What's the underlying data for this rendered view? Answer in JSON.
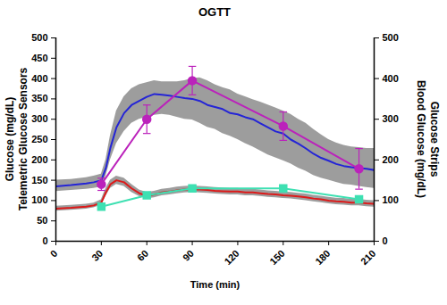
{
  "chart_data": {
    "type": "line",
    "title": "OGTT",
    "xlabel": "Time (min)",
    "ylabel": [
      "Glucose (mg/dL)",
      "Telemetric Glucose Sensors"
    ],
    "y2label": [
      "Blood Glucose (mg/dL)",
      "Glucose Strips"
    ],
    "xlim": [
      0,
      210
    ],
    "xticks": [
      0,
      30,
      60,
      90,
      120,
      150,
      180,
      210
    ],
    "ylim": [
      0,
      500
    ],
    "yticks": [
      0,
      50,
      100,
      150,
      200,
      250,
      300,
      350,
      400,
      450,
      500
    ],
    "y2lim": [
      0,
      500
    ],
    "y2ticks": [
      0,
      100,
      200,
      300,
      400,
      500
    ],
    "grid": false,
    "series": [
      {
        "color": "#2424d6",
        "type": "line",
        "x": [
          0,
          10,
          20,
          25,
          30,
          33,
          36,
          40,
          45,
          50,
          55,
          60,
          65,
          70,
          75,
          80,
          85,
          90,
          95,
          100,
          105,
          110,
          115,
          120,
          125,
          130,
          135,
          140,
          145,
          150,
          155,
          160,
          165,
          170,
          175,
          180,
          185,
          190,
          195,
          200,
          205,
          210
        ],
        "values": [
          135,
          138,
          142,
          145,
          150,
          180,
          230,
          280,
          315,
          335,
          345,
          355,
          362,
          360,
          358,
          355,
          352,
          350,
          345,
          335,
          330,
          325,
          315,
          312,
          305,
          300,
          290,
          280,
          270,
          265,
          250,
          240,
          228,
          215,
          205,
          198,
          190,
          185,
          182,
          180,
          178,
          175
        ],
        "lower": [
          122,
          125,
          128,
          130,
          133,
          160,
          200,
          240,
          270,
          290,
          300,
          305,
          310,
          312,
          310,
          305,
          300,
          298,
          290,
          280,
          275,
          265,
          258,
          250,
          240,
          232,
          222,
          212,
          205,
          198,
          190,
          180,
          172,
          162,
          155,
          150,
          145,
          140,
          138,
          135,
          132,
          130
        ],
        "upper": [
          150,
          152,
          156,
          160,
          165,
          200,
          260,
          320,
          355,
          375,
          385,
          390,
          395,
          392,
          392,
          392,
          395,
          400,
          402,
          395,
          385,
          378,
          372,
          362,
          355,
          348,
          342,
          335,
          328,
          320,
          312,
          300,
          290,
          275,
          262,
          250,
          242,
          236,
          232,
          230,
          228,
          228
        ]
      },
      {
        "color": "#dd1a1a",
        "type": "line",
        "x": [
          0,
          10,
          20,
          25,
          30,
          33,
          36,
          40,
          45,
          50,
          55,
          60,
          65,
          70,
          75,
          80,
          85,
          90,
          95,
          100,
          105,
          110,
          115,
          120,
          125,
          130,
          135,
          140,
          145,
          150,
          155,
          160,
          165,
          170,
          175,
          180,
          185,
          190,
          195,
          200,
          205,
          210
        ],
        "values": [
          80,
          82,
          85,
          88,
          95,
          120,
          140,
          150,
          145,
          130,
          118,
          112,
          115,
          120,
          122,
          125,
          127,
          128,
          127,
          126,
          124,
          123,
          122,
          122,
          120,
          120,
          118,
          116,
          115,
          113,
          112,
          110,
          108,
          105,
          103,
          100,
          98,
          97,
          95,
          95,
          93,
          92
        ],
        "lower": [
          74,
          76,
          79,
          82,
          88,
          110,
          130,
          140,
          135,
          120,
          110,
          104,
          107,
          112,
          114,
          117,
          119,
          120,
          119,
          118,
          116,
          115,
          114,
          114,
          112,
          112,
          110,
          108,
          107,
          105,
          104,
          102,
          100,
          97,
          95,
          92,
          90,
          89,
          87,
          87,
          85,
          84
        ],
        "upper": [
          86,
          88,
          91,
          94,
          102,
          130,
          150,
          160,
          155,
          140,
          126,
          120,
          123,
          128,
          130,
          133,
          135,
          136,
          135,
          134,
          132,
          131,
          130,
          130,
          128,
          128,
          126,
          124,
          123,
          121,
          120,
          118,
          116,
          113,
          111,
          108,
          106,
          105,
          103,
          103,
          101,
          100
        ]
      },
      {
        "color": "#bb22bb",
        "type": "line",
        "marker": "circle",
        "axis": "y2",
        "x": [
          30,
          60,
          90,
          150,
          200
        ],
        "values": [
          140,
          300,
          395,
          283,
          178
        ],
        "errors": [
          15,
          35,
          35,
          35,
          50
        ]
      },
      {
        "color": "#3ee0b2",
        "type": "line",
        "marker": "square",
        "axis": "y2",
        "x": [
          30,
          60,
          90,
          150,
          200
        ],
        "values": [
          85,
          113,
          130,
          130,
          103
        ],
        "errors": [
          4,
          5,
          6,
          5,
          5
        ]
      }
    ]
  }
}
